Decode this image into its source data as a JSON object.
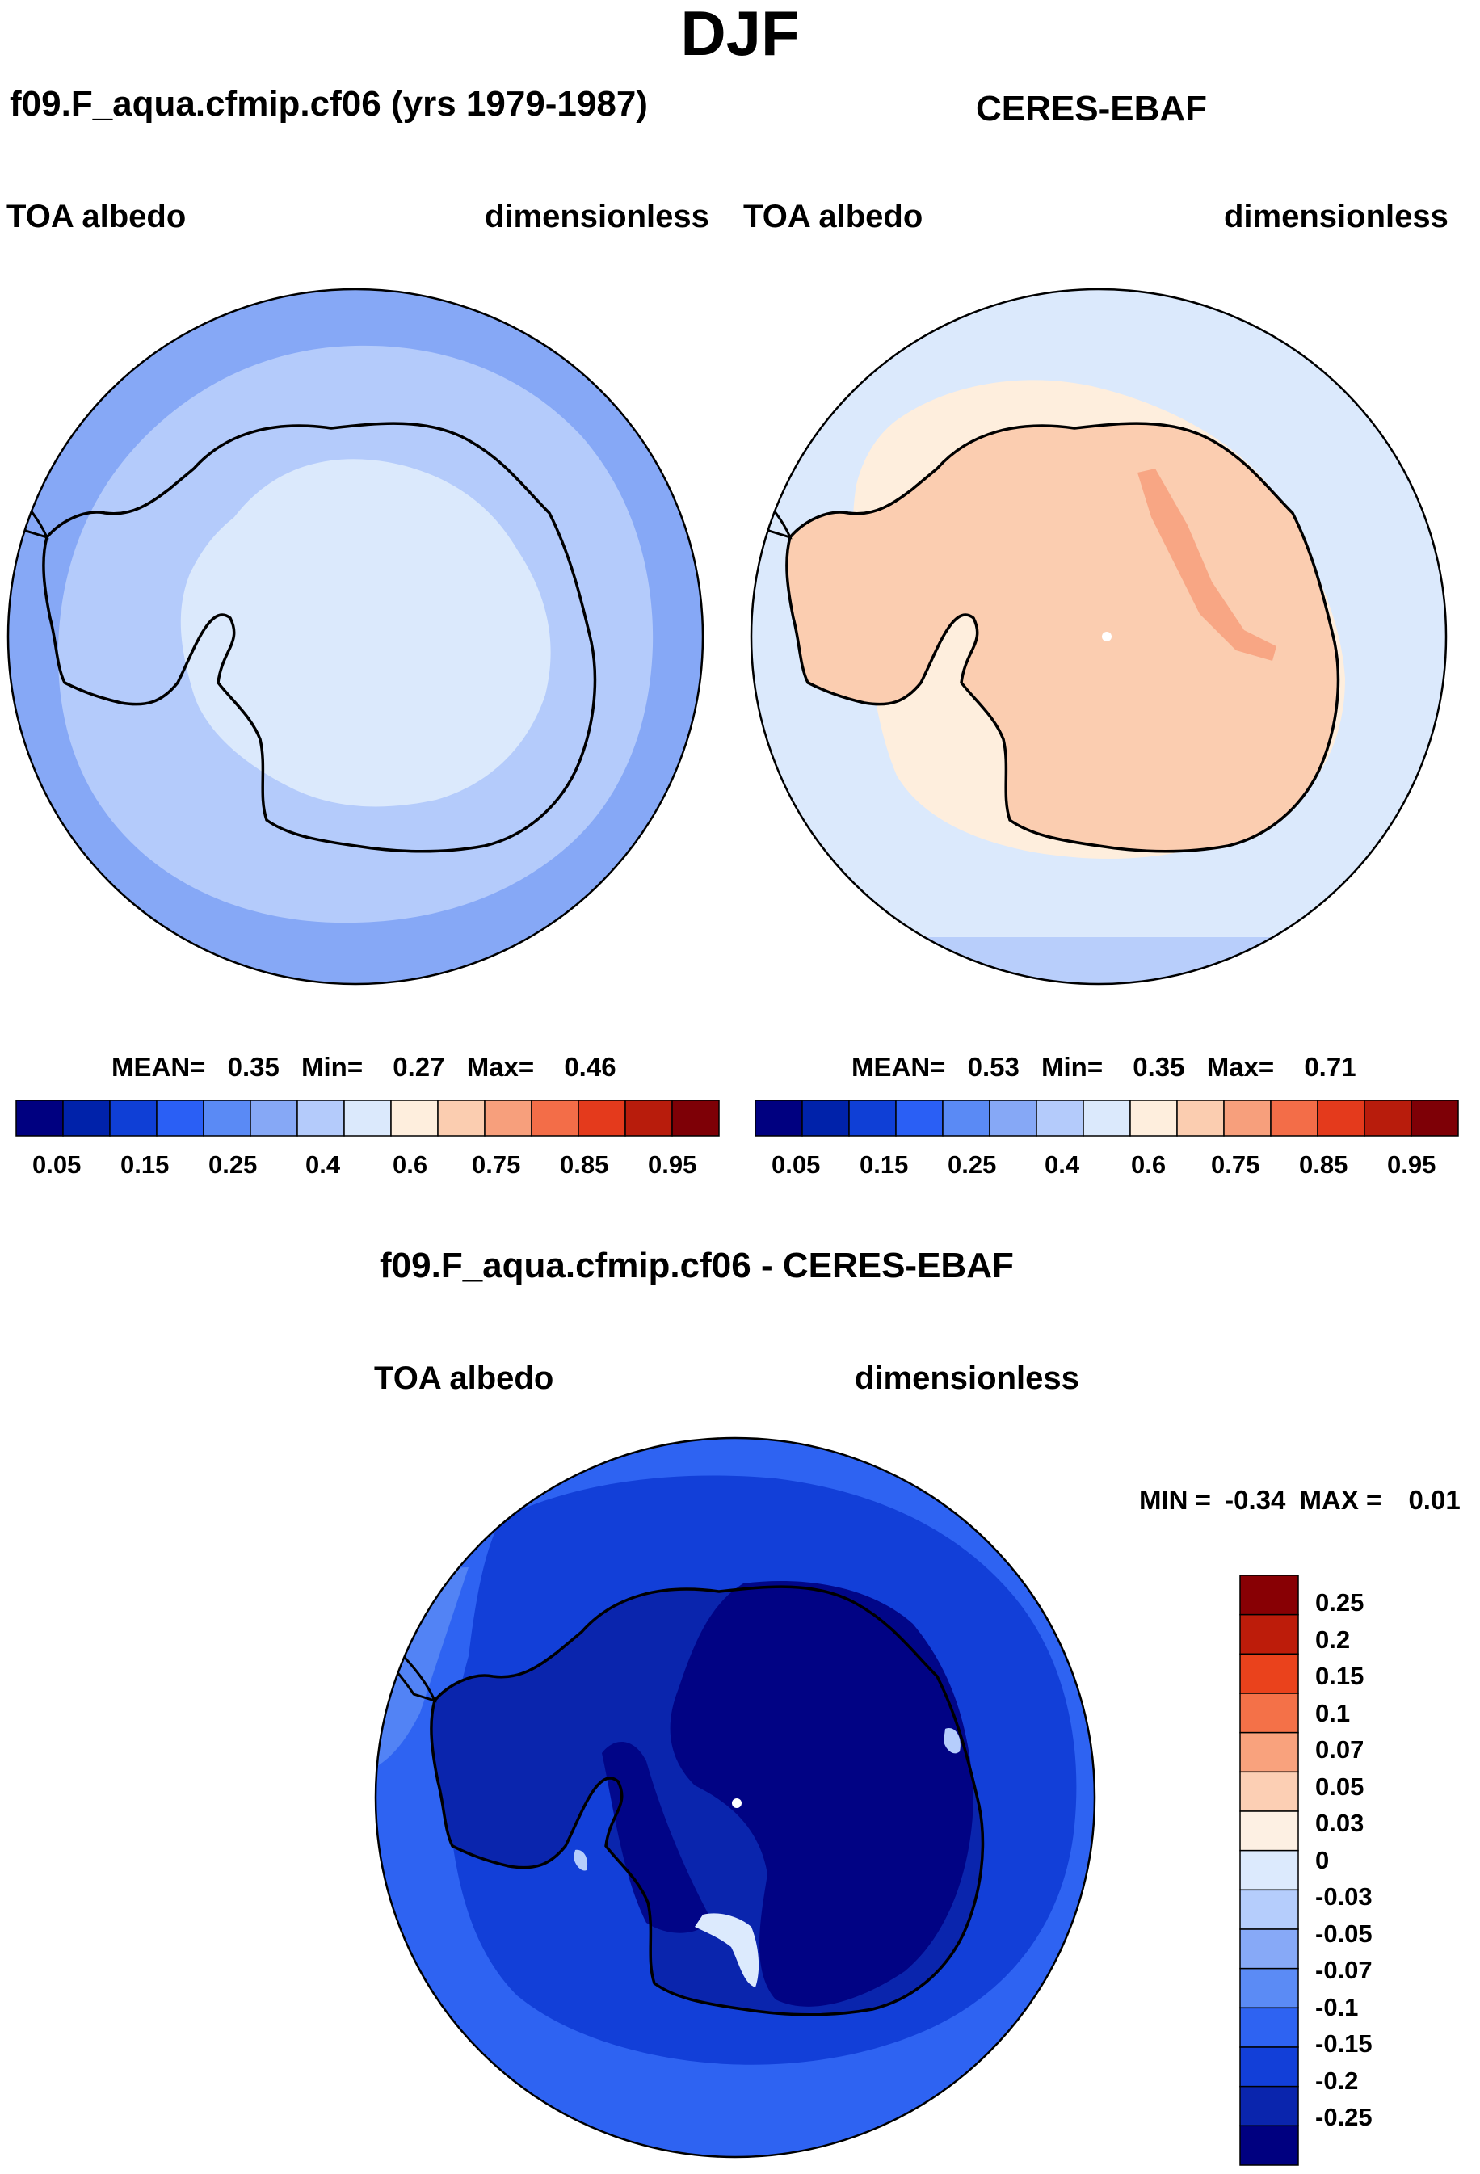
{
  "figure": {
    "season": "DJF",
    "bottom_title": "f09.F_aqua.cfmip.cf06 - CERES-EBAF"
  },
  "colors": {
    "abs_scale": [
      "#000080",
      "#0022aa",
      "#0f3fd6",
      "#2a5ff5",
      "#5a8af5",
      "#86a8f6",
      "#b4cbfb",
      "#dbe9fc",
      "#feeedd",
      "#fbcdb0",
      "#f79f7c",
      "#f36d48",
      "#e43a1c",
      "#b81c0c",
      "#7e0006"
    ],
    "diff_scale": [
      "#000080",
      "#0a25ad",
      "#123fd8",
      "#2e63f2",
      "#5b8bf5",
      "#87a9f7",
      "#b5cdfc",
      "#dceafd",
      "#fdf0e3",
      "#fccfb4",
      "#f9a27d",
      "#f47148",
      "#ea421c",
      "#bd1c0a",
      "#880004"
    ],
    "coastline": "#000000"
  },
  "panels": [
    {
      "id": "model",
      "case": "f09.F_aqua.cfmip.cf06 (yrs 1979-1987)",
      "variable": "TOA albedo",
      "units": "dimensionless",
      "stats": {
        "mean_label": "MEAN=",
        "mean": "0.35",
        "min_label": "Min=",
        "min": "0.27",
        "max_label": "Max=",
        "max": "0.46"
      },
      "colorbar_ticks": [
        "0.05",
        "0.15",
        "0.25",
        "0.4",
        "0.6",
        "0.75",
        "0.85",
        "0.95"
      ]
    },
    {
      "id": "obs",
      "case": "CERES-EBAF",
      "variable": "TOA albedo",
      "units": "dimensionless",
      "stats": {
        "mean_label": "MEAN=",
        "mean": "0.53",
        "min_label": "Min=",
        "min": "0.35",
        "max_label": "Max=",
        "max": "0.71"
      },
      "colorbar_ticks": [
        "0.05",
        "0.15",
        "0.25",
        "0.4",
        "0.6",
        "0.75",
        "0.85",
        "0.95"
      ]
    },
    {
      "id": "diff",
      "variable": "TOA albedo",
      "units": "dimensionless",
      "stats": {
        "min_label": "MIN =",
        "min": "-0.34",
        "max_label": "MAX =",
        "max": "0.01"
      },
      "colorbar_ticks": [
        "0.25",
        "0.2",
        "0.15",
        "0.1",
        "0.07",
        "0.05",
        "0.03",
        "0",
        "-0.03",
        "-0.05",
        "-0.07",
        "-0.1",
        "-0.15",
        "-0.2",
        "-0.25"
      ]
    }
  ]
}
